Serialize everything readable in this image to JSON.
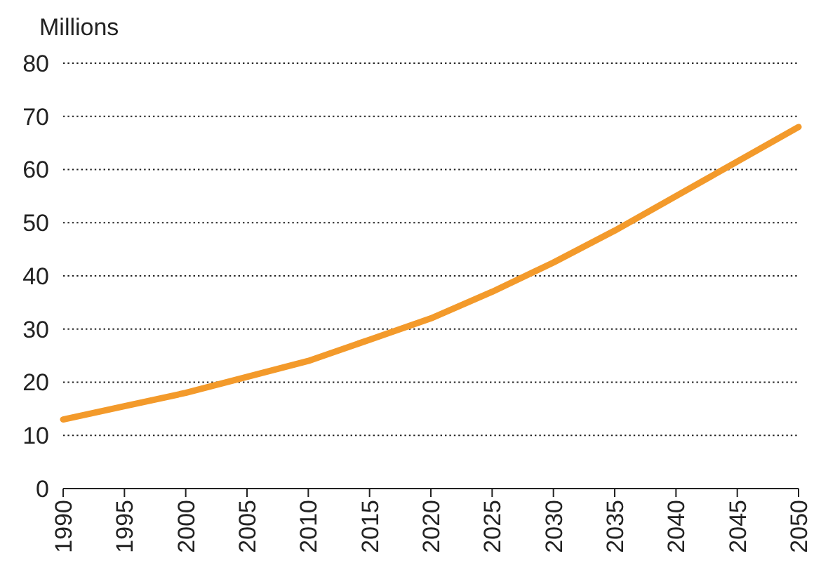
{
  "chart_data": {
    "type": "line",
    "ylabel": "Millions",
    "x": [
      1990,
      1995,
      2000,
      2005,
      2010,
      2015,
      2020,
      2025,
      2030,
      2035,
      2040,
      2045,
      2050
    ],
    "series": [
      {
        "color": "#f39a2b",
        "values": [
          13,
          15.5,
          18,
          21,
          24,
          28,
          32,
          37,
          42.5,
          48.5,
          55,
          61.5,
          68
        ]
      }
    ],
    "xlim": [
      1990,
      2050
    ],
    "xticks": [
      1990,
      1995,
      2000,
      2005,
      2010,
      2015,
      2020,
      2025,
      2030,
      2035,
      2040,
      2045,
      2050
    ],
    "ylim": [
      0,
      80
    ],
    "yticks": [
      0,
      10,
      20,
      30,
      40,
      50,
      60,
      70,
      80
    ],
    "grid": "y",
    "marker": "none",
    "line_style": "solid"
  }
}
